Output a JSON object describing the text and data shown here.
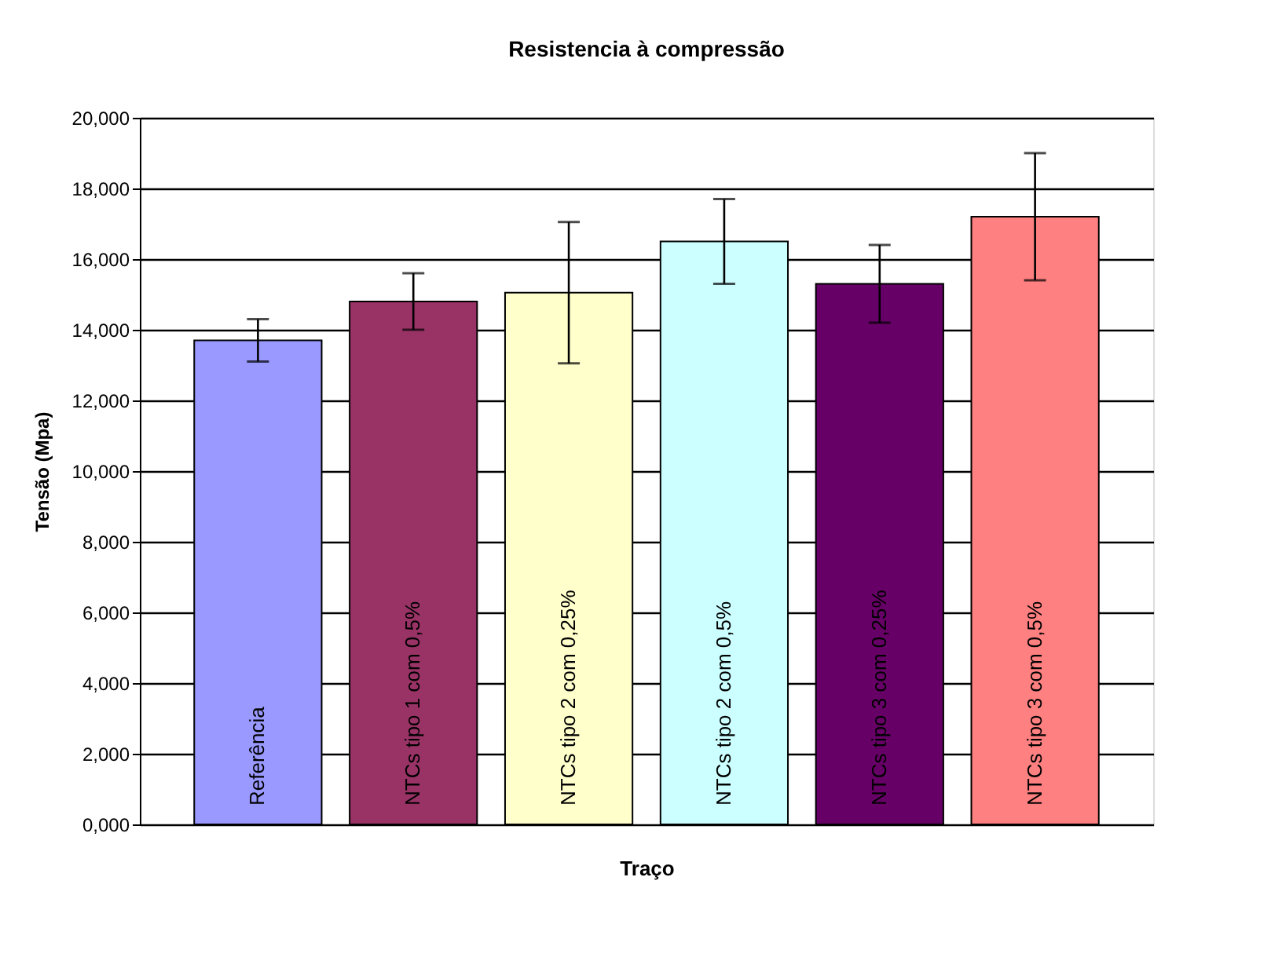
{
  "chart_data": {
    "type": "bar",
    "title": "Resistencia à compressão",
    "xlabel": "Traço",
    "ylabel": "Tensão (Mpa)",
    "categories": [
      "Referência",
      "NTCs tipo 1 com 0,5%",
      "NTCs tipo 2 com 0,25%",
      "NTCs tipo 2 com 0,5%",
      "NTCs tipo 3 com 0,25%",
      "NTCs tipo 3 com 0,5%"
    ],
    "values": [
      13.7,
      14.8,
      15.05,
      16.5,
      15.3,
      17.2
    ],
    "errors": [
      0.6,
      0.8,
      2.0,
      1.2,
      1.1,
      1.8
    ],
    "colors": [
      "#9999ff",
      "#993366",
      "#ffffcc",
      "#ccffff",
      "#660066",
      "#ff8080"
    ],
    "ylim": [
      0,
      20
    ],
    "yticks": [
      {
        "value": 0,
        "label": "0,000"
      },
      {
        "value": 2,
        "label": "2,000"
      },
      {
        "value": 4,
        "label": "4,000"
      },
      {
        "value": 6,
        "label": "6,000"
      },
      {
        "value": 8,
        "label": "8,000"
      },
      {
        "value": 10,
        "label": "10,000"
      },
      {
        "value": 12,
        "label": "12,000"
      },
      {
        "value": 14,
        "label": "14,000"
      },
      {
        "value": 16,
        "label": "16,000"
      },
      {
        "value": 18,
        "label": "18,000"
      },
      {
        "value": 20,
        "label": "20,000"
      }
    ],
    "grid": "y",
    "tick_labels": "y"
  }
}
